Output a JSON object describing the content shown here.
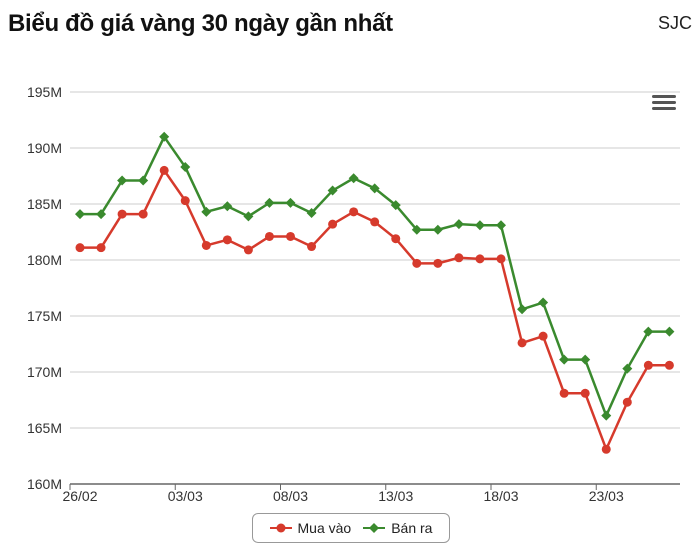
{
  "header": {
    "title": "Biểu đồ giá vàng 30 ngày gần nhất",
    "source": "SJC"
  },
  "menu": {
    "icon": "hamburger-menu-icon"
  },
  "colors": {
    "buy": "#d63a2c",
    "sell": "#3a8a2e",
    "grid": "#cccccc",
    "axis": "#666666"
  },
  "chart_data": {
    "type": "line",
    "title": "Biểu đồ giá vàng 30 ngày gần nhất",
    "xlabel": "",
    "ylabel": "",
    "ylim": [
      160000000,
      195000000
    ],
    "yticks": [
      {
        "value": 160000000,
        "label": "160M"
      },
      {
        "value": 165000000,
        "label": "165M"
      },
      {
        "value": 170000000,
        "label": "170M"
      },
      {
        "value": 175000000,
        "label": "175M"
      },
      {
        "value": 180000000,
        "label": "180M"
      },
      {
        "value": 185000000,
        "label": "185M"
      },
      {
        "value": 190000000,
        "label": "190M"
      },
      {
        "value": 195000000,
        "label": "195M"
      }
    ],
    "xticks": [
      {
        "index": 0,
        "label": "26/02"
      },
      {
        "index": 5,
        "label": "03/03"
      },
      {
        "index": 10,
        "label": "08/03"
      },
      {
        "index": 15,
        "label": "13/03"
      },
      {
        "index": 20,
        "label": "18/03"
      },
      {
        "index": 25,
        "label": "23/03"
      }
    ],
    "grid": true,
    "legend_position": "bottom-center",
    "series": [
      {
        "name": "Mua vào",
        "color": "#d63a2c",
        "marker": "circle",
        "values": [
          181100000,
          181100000,
          184100000,
          184100000,
          188000000,
          185300000,
          181300000,
          181800000,
          180900000,
          182100000,
          182100000,
          181200000,
          183200000,
          184300000,
          183400000,
          181900000,
          179700000,
          179700000,
          180200000,
          180100000,
          180100000,
          172600000,
          173200000,
          168100000,
          168100000,
          163100000,
          167300000,
          170600000,
          170600000
        ]
      },
      {
        "name": "Bán ra",
        "color": "#3a8a2e",
        "marker": "diamond",
        "values": [
          184100000,
          184100000,
          187100000,
          187100000,
          191000000,
          188300000,
          184300000,
          184800000,
          183900000,
          185100000,
          185100000,
          184200000,
          186200000,
          187300000,
          186400000,
          184900000,
          182700000,
          182700000,
          183200000,
          183100000,
          183100000,
          175600000,
          176200000,
          171100000,
          171100000,
          166100000,
          170300000,
          173600000,
          173600000
        ]
      }
    ]
  }
}
